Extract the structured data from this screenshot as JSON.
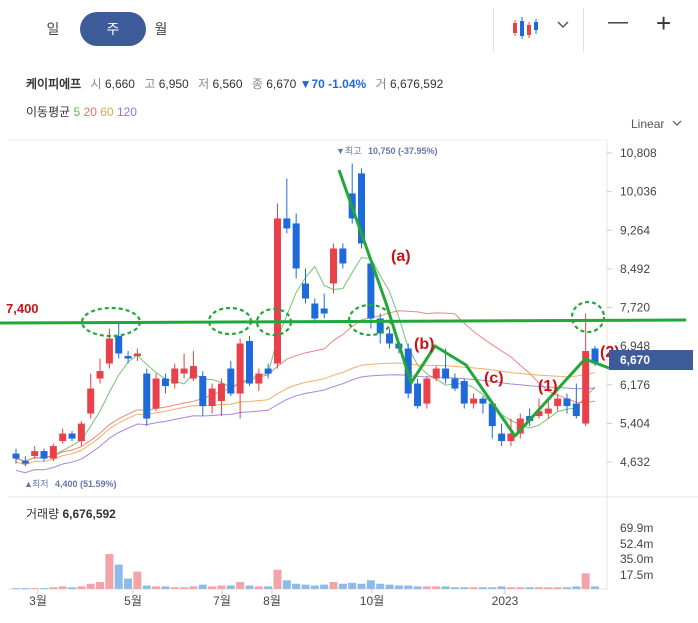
{
  "period_tabs": [
    "일",
    "주",
    "월"
  ],
  "active_tab": "주",
  "toolbar": {
    "chart_type_icon": "candlestick-icon",
    "zoom_out_label": "—",
    "zoom_in_label": "+"
  },
  "stock": {
    "name": "케이피에프",
    "open_label": "시",
    "open": "6,660",
    "high_label": "고",
    "high": "6,950",
    "low_label": "저",
    "low": "6,560",
    "close_label": "종",
    "close": "6,670",
    "change": "▼70 -1.04%",
    "volume_label": "거",
    "volume": "6,676,592"
  },
  "moving_average": {
    "label": "이동평균",
    "periods": [
      "5",
      "20",
      "60",
      "120"
    ],
    "colors": [
      "#5cb85c",
      "#e8736c",
      "#f0a050",
      "#9b6fd6"
    ]
  },
  "scale_label": "Linear",
  "colors": {
    "up": "#e8414a",
    "down": "#1e6ad8",
    "annotation_green": "#22a83a",
    "annotation_red": "#cc1111",
    "price_tag": "#3d5a99"
  },
  "chart_data": {
    "type": "candlestick",
    "x_ticks": [
      "3월",
      "5월",
      "7월",
      "8월",
      "10월",
      "2023"
    ],
    "y_ticks": [
      10808,
      10036,
      9264,
      8492,
      7720,
      6948,
      6176,
      5404,
      4632
    ],
    "y_tick_labels": [
      "10,808",
      "10,036",
      "9,264",
      "8,492",
      "7,720",
      "6,948",
      "6,176",
      "5,404",
      "4,632"
    ],
    "ylim": [
      4400,
      11100
    ],
    "current_price": 6670,
    "current_price_label": "6,670",
    "max_label": "최고",
    "max_value": "10,750 (-37.95%)",
    "min_label": "최저",
    "min_value": "4,400 (51.59%)",
    "horizontal_line": {
      "value": 7400,
      "label": "7,400"
    },
    "annotations": [
      "(a)",
      "(b)",
      "(c)",
      "(1)",
      "(2)"
    ],
    "volume": {
      "label": "거래량",
      "value": "6,676,592",
      "y_ticks": [
        "69.9m",
        "52.4m",
        "35.0m",
        "17.5m"
      ]
    }
  }
}
